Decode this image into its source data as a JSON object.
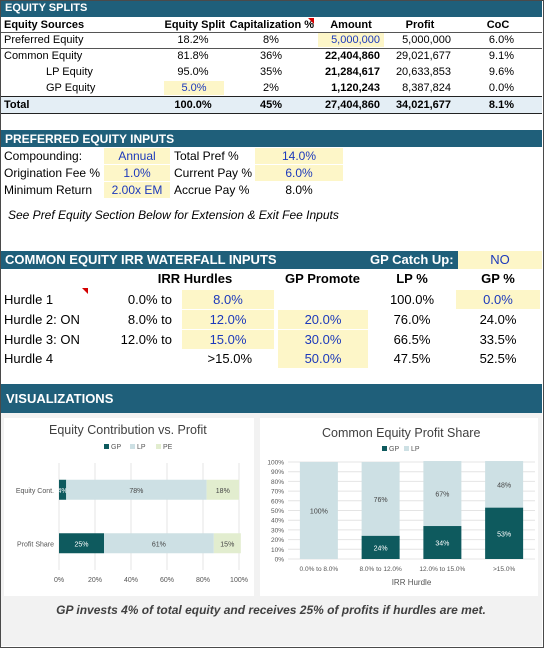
{
  "equity_splits": {
    "header": "EQUITY SPLITS",
    "columns": [
      "Equity Sources",
      "Equity Split",
      "Capitalization %",
      "Amount",
      "Profit",
      "CoC"
    ],
    "rows": [
      {
        "name": "Preferred Equity",
        "split": "18.2%",
        "cap": "8%",
        "amount": "5,000,000",
        "profit": "5,000,000",
        "coc": "6.0%"
      },
      {
        "name": "Common Equity",
        "split": "81.8%",
        "cap": "36%",
        "amount": "22,404,860",
        "profit": "29,021,677",
        "coc": "9.1%"
      },
      {
        "name": "LP Equity",
        "split": "95.0%",
        "cap": "35%",
        "amount": "21,284,617",
        "profit": "20,633,853",
        "coc": "9.6%"
      },
      {
        "name": "GP Equity",
        "split": "5.0%",
        "cap": "2%",
        "amount": "1,120,243",
        "profit": "8,387,824",
        "coc": "0.0%"
      }
    ],
    "total": {
      "name": "Total",
      "split": "100.0%",
      "cap": "45%",
      "amount": "27,404,860",
      "profit": "34,021,677",
      "coc": "8.1%"
    }
  },
  "pref_inputs": {
    "header": "PREFERRED EQUITY INPUTS",
    "compounding_label": "Compounding:",
    "compounding_value": "Annual",
    "total_pref_label": "Total Pref %",
    "total_pref_value": "14.0%",
    "origination_label": "Origination Fee %",
    "origination_value": "1.0%",
    "current_pay_label": "Current Pay %",
    "current_pay_value": "6.0%",
    "min_return_label": "Minimum Return",
    "min_return_value": "2.00x EM",
    "accrue_pay_label": "Accrue Pay %",
    "accrue_pay_value": "8.0%",
    "note": "See Pref Equity Section Below for Extension & Exit Fee Inputs"
  },
  "waterfall": {
    "header": "COMMON EQUITY IRR WATERFALL INPUTS",
    "catch_up_label": "GP Catch Up:",
    "catch_up_value": "NO",
    "columns": {
      "irr": "IRR Hurdles",
      "promote": "GP Promote",
      "lp": "LP %",
      "gp": "GP %"
    },
    "rows": [
      {
        "name": "Hurdle 1",
        "low": "0.0% to",
        "high": "8.0%",
        "promote": "",
        "lp": "100.0%",
        "gp": "0.0%"
      },
      {
        "name": "Hurdle 2: ON",
        "low": "8.0% to",
        "high": "12.0%",
        "promote": "20.0%",
        "lp": "76.0%",
        "gp": "24.0%"
      },
      {
        "name": "Hurdle 3: ON",
        "low": "12.0% to",
        "high": "15.0%",
        "promote": "30.0%",
        "lp": "66.5%",
        "gp": "33.5%"
      },
      {
        "name": "Hurdle 4",
        "low": "",
        "high": ">15.0%",
        "promote": "50.0%",
        "lp": "47.5%",
        "gp": "52.5%"
      }
    ]
  },
  "visualizations": {
    "header": "VISUALIZATIONS",
    "footer": "GP invests 4% of total equity and receives 25% of profits if hurdles are met.",
    "colors": {
      "gp": "#0e5a5e",
      "lp": "#cde0e4",
      "pe": "#e2edcf"
    }
  },
  "chart_data": [
    {
      "type": "bar",
      "orientation": "horizontal",
      "stacked": true,
      "title": "Equity Contribution vs. Profit",
      "categories": [
        "Equity Cont.",
        "Profit Share"
      ],
      "series": [
        {
          "name": "GP",
          "values": [
            4,
            25
          ],
          "labels": [
            "4%",
            "25%"
          ]
        },
        {
          "name": "LP",
          "values": [
            78,
            61
          ],
          "labels": [
            "78%",
            "61%"
          ]
        },
        {
          "name": "PE",
          "values": [
            18,
            15
          ],
          "labels": [
            "18%",
            "15%"
          ]
        }
      ],
      "xlim": [
        0,
        100
      ],
      "xticks": [
        "0%",
        "20%",
        "40%",
        "60%",
        "80%",
        "100%"
      ],
      "legend": "top"
    },
    {
      "type": "bar",
      "orientation": "vertical",
      "stacked": true,
      "title": "Common Equity Profit Share",
      "xlabel": "IRR Hurdle",
      "categories": [
        "0.0% to 8.0%",
        "8.0% to 12.0%",
        "12.0% to 15.0%",
        ">15.0%"
      ],
      "series": [
        {
          "name": "GP",
          "values": [
            0,
            24,
            34,
            53
          ],
          "labels": [
            "",
            "24%",
            "34%",
            "53%"
          ]
        },
        {
          "name": "LP",
          "values": [
            100,
            76,
            67,
            48
          ],
          "labels": [
            "100%",
            "76%",
            "67%",
            "48%"
          ]
        }
      ],
      "ylim": [
        0,
        100
      ],
      "yticks": [
        "0%",
        "10%",
        "20%",
        "30%",
        "40%",
        "50%",
        "60%",
        "70%",
        "80%",
        "90%",
        "100%"
      ],
      "legend": "top"
    }
  ]
}
